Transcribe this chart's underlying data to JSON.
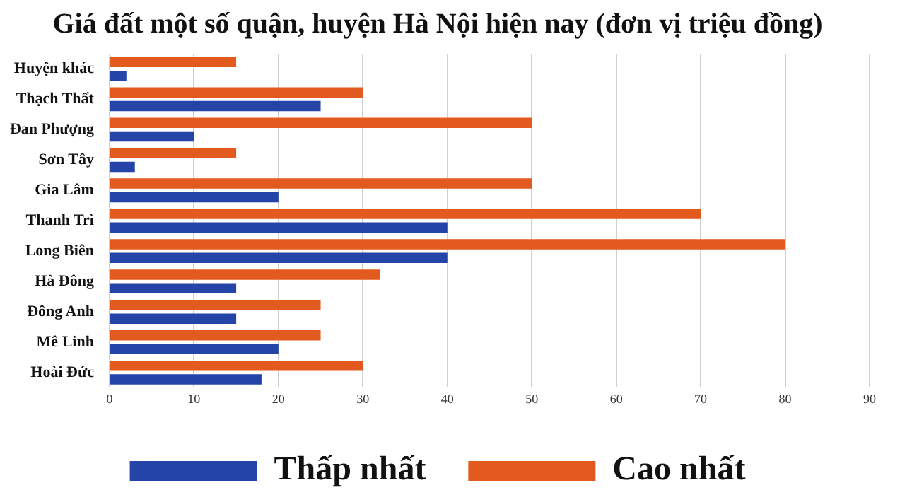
{
  "chart_data": {
    "type": "bar",
    "orientation": "horizontal",
    "title": "Giá đất một số quận, huyện Hà Nội hiện nay (đơn vị triệu đồng)",
    "categories": [
      "Huyện khác",
      "Thạch Thất",
      "Đan Phượng",
      "Sơn Tây",
      "Gia Lâm",
      "Thanh Trì",
      "Long Biên",
      "Hà Đông",
      "Đông Anh",
      "Mê Linh",
      "Hoài Đức"
    ],
    "series": [
      {
        "name": "Cao nhất",
        "color": "#e35a1e",
        "values": [
          15,
          30,
          50,
          15,
          50,
          70,
          80,
          32,
          25,
          25,
          30
        ]
      },
      {
        "name": "Thấp nhất",
        "color": "#2444a8",
        "values": [
          2,
          25,
          10,
          3,
          20,
          40,
          40,
          15,
          15,
          20,
          18
        ]
      }
    ],
    "xlim": [
      0,
      90
    ],
    "xticks": [
      0,
      10,
      20,
      30,
      40,
      50,
      60,
      70,
      80,
      90
    ],
    "grid": "x",
    "legend": "bottom"
  }
}
